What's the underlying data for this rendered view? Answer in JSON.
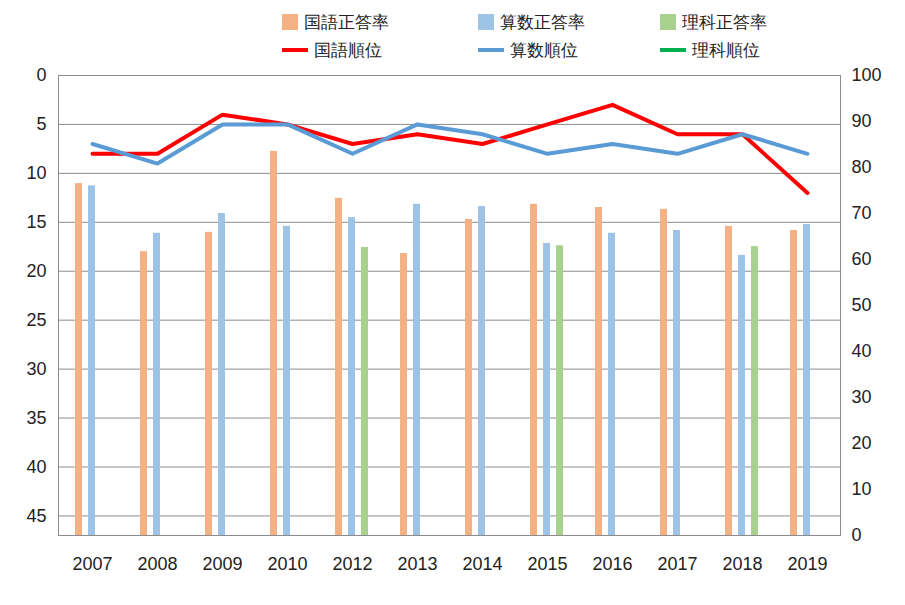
{
  "chart_data": {
    "type": "combo",
    "categories": [
      "2007",
      "2008",
      "2009",
      "2010",
      "2012",
      "2013",
      "2014",
      "2015",
      "2016",
      "2017",
      "2018",
      "2019"
    ],
    "ylim": [
      47,
      0
    ],
    "yticks": [
      0,
      5,
      10,
      15,
      20,
      25,
      30,
      35,
      40,
      45
    ],
    "y2lim": [
      0,
      100
    ],
    "y2ticks": [
      0,
      10,
      20,
      30,
      40,
      50,
      60,
      70,
      80,
      90,
      100
    ],
    "grid": true,
    "legend": "top",
    "series": [
      {
        "name": "国語正答率",
        "type": "bar",
        "axis": "y2",
        "color": "#F4B183",
        "values": [
          76.5,
          61.7,
          65.9,
          83.5,
          73.3,
          61.3,
          68.7,
          72,
          71.3,
          70.9,
          67.2,
          66.3
        ]
      },
      {
        "name": "算数正答率",
        "type": "bar",
        "axis": "y2",
        "color": "#9DC3E6",
        "values": [
          76,
          65.7,
          70,
          67.2,
          69.1,
          72,
          71.5,
          63.5,
          65.7,
          66.3,
          60.9,
          67.6
        ]
      },
      {
        "name": "理科正答率",
        "type": "bar",
        "axis": "y2",
        "color": "#A9D18E",
        "values": [
          null,
          null,
          null,
          null,
          62.6,
          null,
          null,
          63,
          null,
          null,
          62.8,
          null
        ]
      },
      {
        "name": "国語順位",
        "type": "line",
        "axis": "y",
        "color": "#FF0000",
        "values": [
          8,
          8,
          4,
          5,
          7,
          6,
          7,
          5,
          3,
          6,
          6,
          12
        ]
      },
      {
        "name": "算数順位",
        "type": "line",
        "axis": "y",
        "color": "#5B9BD5",
        "values": [
          7,
          9,
          5,
          5,
          8,
          5,
          6,
          8,
          7,
          8,
          6,
          8
        ]
      },
      {
        "name": "理科順位",
        "type": "line",
        "axis": "y",
        "color": "#00B050",
        "values": [
          null,
          null,
          null,
          null,
          null,
          null,
          null,
          null,
          null,
          null,
          null,
          null
        ]
      }
    ]
  }
}
